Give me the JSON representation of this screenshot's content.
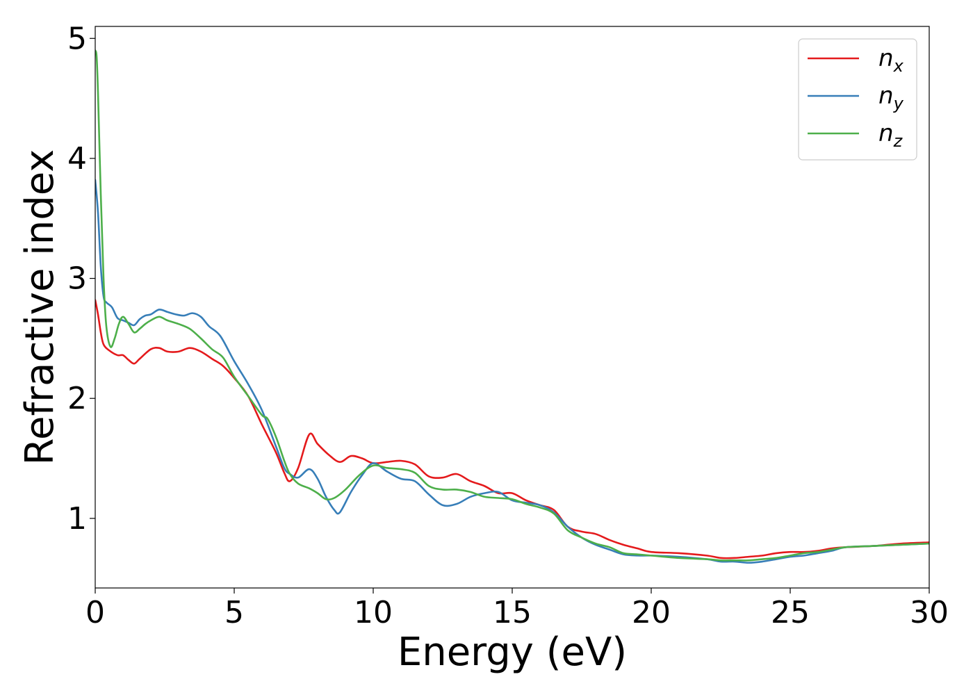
{
  "chart_data": {
    "type": "line",
    "title": "",
    "xlabel": "Energy (eV)",
    "ylabel": "Refractive index",
    "xlim": [
      0,
      30
    ],
    "ylim": [
      0.42,
      5.1
    ],
    "xticks": [
      0,
      5,
      10,
      15,
      20,
      25,
      30
    ],
    "yticks": [
      1,
      2,
      3,
      4,
      5
    ],
    "grid": false,
    "legend_position": "top-right",
    "series": [
      {
        "name": "n_x",
        "label_base": "n",
        "label_sub": "x",
        "color": "#e41a1c",
        "x": [
          0,
          0.1,
          0.2,
          0.3,
          0.5,
          0.8,
          1.0,
          1.2,
          1.4,
          1.6,
          2.0,
          2.3,
          2.6,
          3.0,
          3.4,
          3.8,
          4.2,
          4.6,
          5.0,
          5.5,
          6.0,
          6.5,
          6.8,
          7.0,
          7.3,
          7.7,
          8.0,
          8.4,
          8.8,
          9.2,
          9.6,
          10.0,
          10.5,
          11.0,
          11.5,
          12.0,
          12.5,
          13.0,
          13.5,
          14.0,
          14.5,
          15.0,
          15.5,
          16.0,
          16.5,
          17.0,
          17.5,
          18.0,
          18.5,
          19.0,
          19.5,
          20.0,
          21.0,
          22.0,
          22.5,
          23.0,
          23.5,
          24.0,
          24.5,
          25.0,
          25.5,
          26.0,
          26.5,
          27.0,
          28.0,
          29.0,
          30.0
        ],
        "y": [
          2.82,
          2.7,
          2.55,
          2.45,
          2.4,
          2.36,
          2.36,
          2.32,
          2.29,
          2.33,
          2.41,
          2.42,
          2.39,
          2.39,
          2.42,
          2.39,
          2.33,
          2.27,
          2.17,
          2.02,
          1.78,
          1.55,
          1.38,
          1.31,
          1.42,
          1.7,
          1.62,
          1.53,
          1.47,
          1.52,
          1.5,
          1.46,
          1.47,
          1.48,
          1.45,
          1.35,
          1.34,
          1.37,
          1.31,
          1.27,
          1.21,
          1.21,
          1.15,
          1.11,
          1.07,
          0.93,
          0.89,
          0.87,
          0.82,
          0.78,
          0.75,
          0.72,
          0.71,
          0.69,
          0.67,
          0.67,
          0.68,
          0.69,
          0.71,
          0.72,
          0.72,
          0.73,
          0.75,
          0.76,
          0.77,
          0.79,
          0.8
        ]
      },
      {
        "name": "n_y",
        "label_base": "n",
        "label_sub": "y",
        "color": "#377eb8",
        "x": [
          0,
          0.1,
          0.2,
          0.3,
          0.4,
          0.6,
          0.8,
          1.0,
          1.2,
          1.4,
          1.6,
          1.8,
          2.0,
          2.3,
          2.6,
          2.9,
          3.2,
          3.5,
          3.8,
          4.1,
          4.5,
          5.0,
          5.5,
          6.0,
          6.5,
          6.8,
          7.0,
          7.3,
          7.7,
          8.0,
          8.3,
          8.6,
          8.8,
          9.2,
          9.6,
          10.0,
          10.5,
          11.0,
          11.5,
          12.0,
          12.5,
          13.0,
          13.5,
          14.0,
          14.5,
          15.0,
          15.5,
          16.0,
          16.5,
          17.0,
          17.5,
          18.0,
          18.5,
          19.0,
          19.5,
          20.0,
          21.0,
          22.0,
          22.5,
          23.0,
          23.5,
          24.0,
          24.5,
          25.0,
          25.5,
          26.0,
          26.5,
          27.0,
          28.0,
          29.0,
          30.0
        ],
        "y": [
          3.82,
          3.55,
          3.1,
          2.85,
          2.8,
          2.76,
          2.67,
          2.65,
          2.63,
          2.61,
          2.66,
          2.69,
          2.7,
          2.74,
          2.72,
          2.7,
          2.69,
          2.71,
          2.68,
          2.6,
          2.52,
          2.31,
          2.12,
          1.9,
          1.6,
          1.42,
          1.37,
          1.34,
          1.41,
          1.33,
          1.18,
          1.07,
          1.05,
          1.22,
          1.36,
          1.46,
          1.39,
          1.33,
          1.31,
          1.2,
          1.11,
          1.12,
          1.18,
          1.21,
          1.22,
          1.15,
          1.13,
          1.11,
          1.05,
          0.93,
          0.84,
          0.78,
          0.74,
          0.7,
          0.69,
          0.69,
          0.68,
          0.66,
          0.64,
          0.64,
          0.63,
          0.64,
          0.66,
          0.68,
          0.69,
          0.71,
          0.73,
          0.76,
          0.77,
          0.78,
          0.79
        ]
      },
      {
        "name": "n_z",
        "label_base": "n",
        "label_sub": "z",
        "color": "#4daf4a",
        "x": [
          0,
          0.05,
          0.1,
          0.2,
          0.3,
          0.4,
          0.55,
          0.7,
          0.85,
          1.0,
          1.2,
          1.4,
          1.6,
          1.8,
          2.0,
          2.3,
          2.6,
          3.0,
          3.4,
          3.8,
          4.2,
          4.6,
          5.0,
          5.5,
          6.0,
          6.2,
          6.5,
          6.8,
          7.0,
          7.3,
          7.7,
          8.0,
          8.3,
          8.6,
          9.0,
          9.5,
          10.0,
          10.5,
          11.0,
          11.5,
          12.0,
          12.5,
          13.0,
          13.5,
          14.0,
          14.5,
          15.0,
          15.5,
          16.0,
          16.5,
          17.0,
          17.5,
          18.0,
          18.5,
          19.0,
          19.5,
          20.0,
          21.0,
          22.0,
          22.5,
          23.0,
          23.5,
          24.0,
          24.5,
          25.0,
          25.5,
          26.0,
          26.5,
          27.0,
          28.0,
          29.0,
          30.0
        ],
        "y": [
          4.9,
          4.85,
          4.55,
          3.7,
          3.0,
          2.6,
          2.43,
          2.5,
          2.62,
          2.68,
          2.62,
          2.55,
          2.58,
          2.62,
          2.65,
          2.68,
          2.65,
          2.62,
          2.58,
          2.5,
          2.41,
          2.34,
          2.18,
          2.02,
          1.86,
          1.83,
          1.68,
          1.48,
          1.37,
          1.29,
          1.25,
          1.21,
          1.16,
          1.17,
          1.24,
          1.36,
          1.44,
          1.42,
          1.41,
          1.38,
          1.27,
          1.24,
          1.24,
          1.22,
          1.18,
          1.17,
          1.16,
          1.12,
          1.09,
          1.04,
          0.9,
          0.84,
          0.79,
          0.76,
          0.71,
          0.7,
          0.69,
          0.67,
          0.66,
          0.65,
          0.65,
          0.65,
          0.66,
          0.67,
          0.69,
          0.71,
          0.72,
          0.74,
          0.76,
          0.77,
          0.78,
          0.79
        ]
      }
    ]
  }
}
